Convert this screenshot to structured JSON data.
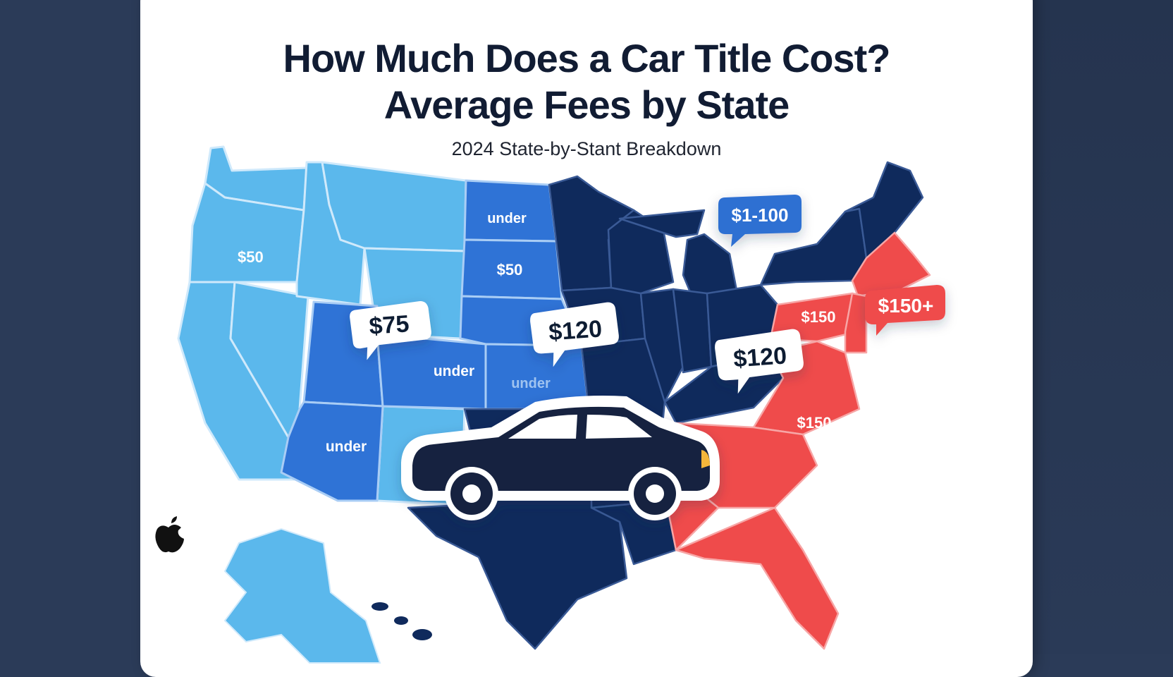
{
  "header": {
    "title_line1": "How Much Does a Car Title Cost?",
    "title_line2": "Average Fees by State",
    "subtitle": "2024 State-by-Stant Breakdown"
  },
  "colors": {
    "light_blue": "#5bb8ec",
    "mid_blue": "#2f73d6",
    "navy": "#0f2a5c",
    "red": "#ef4b4b",
    "background": "#2b3b58"
  },
  "map": {
    "region_labels": {
      "west": "$50",
      "north_dakota": "under",
      "south_dakota": "$50",
      "colorado": "under",
      "kansas": "under",
      "arizona": "under",
      "mid_atlantic": "$150",
      "carolinas": "$150"
    },
    "callouts": {
      "mountain": "$75",
      "plains": "$120",
      "midwest": "$120",
      "great_lakes": "$1-100",
      "northeast": "$150+"
    }
  },
  "icons": {
    "car": "car-icon",
    "logo": "apple-logo-icon"
  }
}
